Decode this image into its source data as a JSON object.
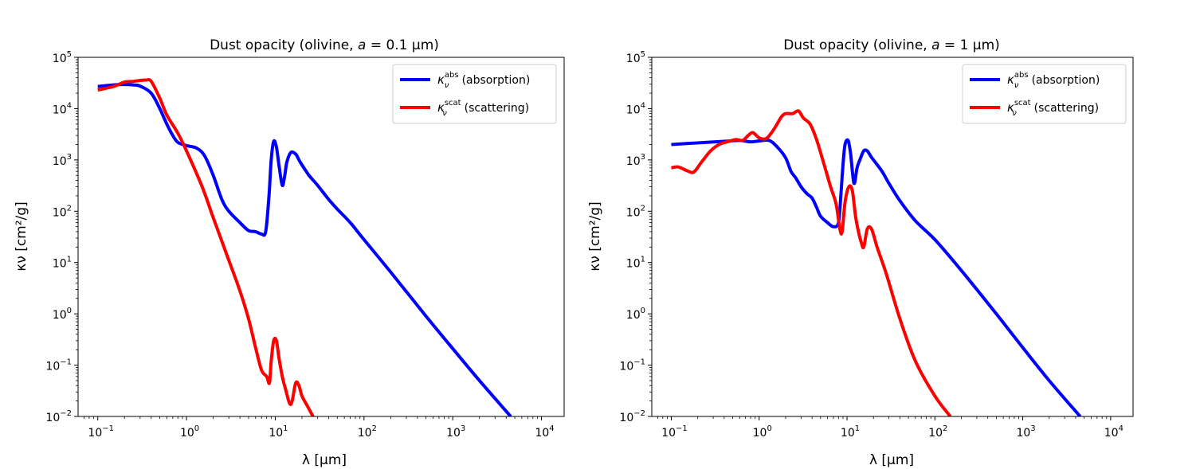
{
  "chart_data": [
    {
      "type": "line",
      "title": "Dust opacity (olivine, a = 0.1 μm)",
      "title_text": "Dust opacity (olivine, ",
      "title_math": "a",
      "title_rest": " = 0.1 μm)",
      "xlabel": "λ [μm]",
      "ylabel": "κν [cm²/g]",
      "xscale": "log",
      "yscale": "log",
      "xlim": [
        0.06,
        18000
      ],
      "ylim": [
        0.01,
        100000
      ],
      "x_ticks": [
        {
          "v": 0.1,
          "b": "10",
          "e": "−1"
        },
        {
          "v": 1,
          "b": "10",
          "e": "0"
        },
        {
          "v": 10,
          "b": "10",
          "e": "1"
        },
        {
          "v": 100,
          "b": "10",
          "e": "2"
        },
        {
          "v": 1000,
          "b": "10",
          "e": "3"
        },
        {
          "v": 10000,
          "b": "10",
          "e": "4"
        }
      ],
      "y_ticks": [
        {
          "v": 0.01,
          "b": "10",
          "e": "−2"
        },
        {
          "v": 0.1,
          "b": "10",
          "e": "−1"
        },
        {
          "v": 1,
          "b": "10",
          "e": "0"
        },
        {
          "v": 10,
          "b": "10",
          "e": "1"
        },
        {
          "v": 100,
          "b": "10",
          "e": "2"
        },
        {
          "v": 1000,
          "b": "10",
          "e": "3"
        },
        {
          "v": 10000,
          "b": "10",
          "e": "4"
        },
        {
          "v": 100000,
          "b": "10",
          "e": "5"
        }
      ],
      "legend_position": "upper right",
      "series": [
        {
          "name": "absorption",
          "legend_base": "κ",
          "legend_sub": "ν",
          "legend_sup": "abs",
          "legend_text": "(absorption)",
          "color": "#0000ff",
          "x": [
            0.1,
            0.15,
            0.2,
            0.25,
            0.3,
            0.4,
            0.5,
            0.6,
            0.7,
            0.8,
            1.0,
            1.3,
            1.6,
            2.0,
            2.5,
            3.0,
            4.0,
            5.0,
            6.0,
            7.0,
            7.8,
            8.5,
            9.0,
            9.6,
            10.3,
            11.0,
            12.0,
            12.8,
            13.5,
            15.0,
            17.0,
            18.5,
            20.0,
            24.0,
            30.0,
            40.0,
            50.0,
            70.0,
            100,
            200,
            500,
            1000,
            2000,
            4500
          ],
          "y": [
            27000,
            29000,
            29500,
            29000,
            27500,
            20000,
            10000,
            5000,
            3000,
            2200,
            1900,
            1700,
            1200,
            500,
            170,
            100,
            60,
            42,
            40,
            36,
            40,
            200,
            1000,
            2300,
            1800,
            800,
            320,
            500,
            900,
            1400,
            1300,
            1000,
            800,
            500,
            320,
            170,
            110,
            60,
            28,
            6.5,
            0.9,
            0.21,
            0.05,
            0.01
          ]
        },
        {
          "name": "scattering",
          "legend_base": "κ",
          "legend_sub": "ν",
          "legend_sup": "scat",
          "legend_text": "(scattering)",
          "color": "#ff0000",
          "x": [
            0.1,
            0.15,
            0.2,
            0.25,
            0.3,
            0.35,
            0.4,
            0.5,
            0.6,
            0.8,
            1.0,
            1.5,
            2.0,
            3.0,
            4.0,
            5.0,
            6.0,
            7.0,
            8.0,
            8.6,
            9.0,
            9.6,
            10.3,
            11.0,
            12.0,
            13.0,
            14.5,
            15.5,
            17.0,
            18.5,
            20.0,
            23.0,
            28.0
          ],
          "y": [
            23000,
            27000,
            33000,
            34000,
            35500,
            36000,
            34000,
            16000,
            7500,
            3300,
            1500,
            300,
            75,
            11,
            2.8,
            0.8,
            0.22,
            0.08,
            0.06,
            0.045,
            0.12,
            0.3,
            0.3,
            0.14,
            0.06,
            0.035,
            0.018,
            0.02,
            0.045,
            0.04,
            0.025,
            0.016,
            0.0085
          ]
        }
      ]
    },
    {
      "type": "line",
      "title": "Dust opacity (olivine, a = 1 μm)",
      "title_text": "Dust opacity (olivine, ",
      "title_math": "a",
      "title_rest": " = 1 μm)",
      "xlabel": "λ [μm]",
      "ylabel": "κν [cm²/g]",
      "xscale": "log",
      "yscale": "log",
      "xlim": [
        0.06,
        18000
      ],
      "ylim": [
        0.01,
        100000
      ],
      "x_ticks": [
        {
          "v": 0.1,
          "b": "10",
          "e": "−1"
        },
        {
          "v": 1,
          "b": "10",
          "e": "0"
        },
        {
          "v": 10,
          "b": "10",
          "e": "1"
        },
        {
          "v": 100,
          "b": "10",
          "e": "2"
        },
        {
          "v": 1000,
          "b": "10",
          "e": "3"
        },
        {
          "v": 10000,
          "b": "10",
          "e": "4"
        }
      ],
      "y_ticks": [
        {
          "v": 0.01,
          "b": "10",
          "e": "−2"
        },
        {
          "v": 0.1,
          "b": "10",
          "e": "−1"
        },
        {
          "v": 1,
          "b": "10",
          "e": "0"
        },
        {
          "v": 10,
          "b": "10",
          "e": "1"
        },
        {
          "v": 100,
          "b": "10",
          "e": "2"
        },
        {
          "v": 1000,
          "b": "10",
          "e": "3"
        },
        {
          "v": 10000,
          "b": "10",
          "e": "4"
        },
        {
          "v": 100000,
          "b": "10",
          "e": "5"
        }
      ],
      "legend_position": "upper right",
      "series": [
        {
          "name": "absorption",
          "legend_base": "κ",
          "legend_sub": "ν",
          "legend_sup": "abs",
          "legend_text": "(absorption)",
          "color": "#0000ff",
          "x": [
            0.1,
            0.2,
            0.4,
            0.6,
            0.8,
            1.0,
            1.3,
            1.6,
            2.0,
            2.3,
            2.6,
            3.0,
            3.5,
            4.0,
            4.5,
            5.0,
            6.0,
            7.0,
            8.0,
            8.5,
            9.0,
            9.5,
            10.3,
            11.0,
            12.0,
            13.0,
            14.0,
            15.5,
            17.0,
            18.5,
            20.0,
            25.0,
            30.0,
            40.0,
            60.0,
            100,
            200,
            500,
            1000,
            2000,
            4500
          ],
          "y": [
            2000,
            2150,
            2300,
            2400,
            2250,
            2350,
            2400,
            1800,
            1100,
            600,
            450,
            300,
            220,
            180,
            120,
            80,
            60,
            50,
            60,
            200,
            800,
            2000,
            2400,
            1300,
            350,
            700,
            1000,
            1500,
            1500,
            1200,
            1000,
            600,
            350,
            160,
            65,
            28,
            7,
            1.0,
            0.22,
            0.05,
            0.01
          ]
        },
        {
          "name": "scattering",
          "legend_base": "κ",
          "legend_sub": "ν",
          "legend_sup": "scat",
          "legend_text": "(scattering)",
          "color": "#ff0000",
          "x": [
            0.1,
            0.12,
            0.15,
            0.18,
            0.22,
            0.28,
            0.35,
            0.45,
            0.55,
            0.65,
            0.75,
            0.85,
            1.0,
            1.2,
            1.4,
            1.6,
            1.8,
            2.0,
            2.4,
            2.8,
            3.2,
            3.8,
            4.5,
            5.5,
            6.5,
            7.5,
            8.3,
            8.8,
            9.5,
            10.5,
            11.5,
            12.5,
            13.5,
            14.5,
            15.5,
            17.0,
            19.0,
            22.0,
            28.0,
            40.0,
            60.0,
            100,
            150
          ],
          "y": [
            700,
            730,
            620,
            580,
            900,
            1500,
            2000,
            2300,
            2500,
            2400,
            3000,
            3400,
            2700,
            2600,
            3500,
            5000,
            7000,
            8000,
            8000,
            9000,
            6500,
            5000,
            2500,
            800,
            300,
            140,
            45,
            40,
            150,
            300,
            250,
            80,
            40,
            25,
            20,
            45,
            45,
            20,
            6,
            0.8,
            0.12,
            0.025,
            0.01
          ]
        }
      ]
    }
  ]
}
